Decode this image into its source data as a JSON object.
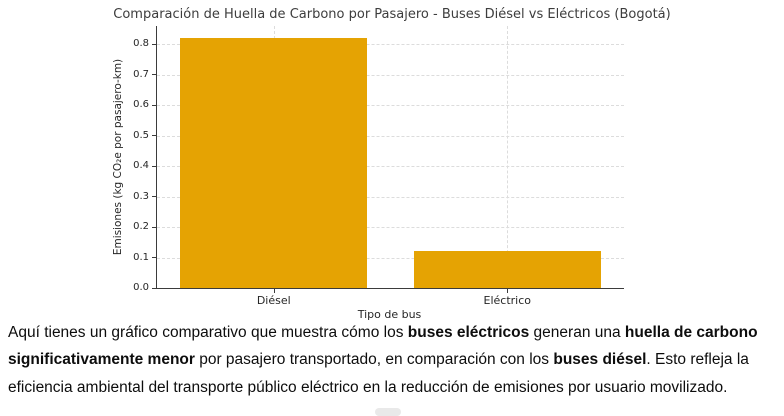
{
  "chart_data": {
    "type": "bar",
    "title": "Comparación de Huella de Carbono por Pasajero - Buses Diésel vs Eléctricos (Bogotá)",
    "categories": [
      "Diésel",
      "Eléctrico"
    ],
    "values": [
      0.82,
      0.12
    ],
    "xlabel": "Tipo de bus",
    "ylabel": "Emisiones (kg CO₂e por pasajero-km)",
    "ylim": [
      0,
      0.86
    ],
    "yticks": [
      0.0,
      0.1,
      0.2,
      0.3,
      0.4,
      0.5,
      0.6,
      0.7,
      0.8
    ],
    "bar_color": "#E5A303",
    "grid": "both-dashed",
    "legend": "none"
  },
  "paragraph": {
    "segments": [
      {
        "text": "Aquí tienes un gráfico comparativo que muestra cómo los ",
        "bold": false
      },
      {
        "text": "buses eléctricos",
        "bold": true
      },
      {
        "text": " generan una ",
        "bold": false
      },
      {
        "text": "huella de carbono significativamente menor",
        "bold": true
      },
      {
        "text": " por pasajero transportado, en comparación con los ",
        "bold": false
      },
      {
        "text": "buses diésel",
        "bold": true
      },
      {
        "text": ". Esto refleja la eficiencia ambiental del transporte público eléctrico en la reducción de emisiones por usuario movilizado.",
        "bold": false
      }
    ]
  }
}
